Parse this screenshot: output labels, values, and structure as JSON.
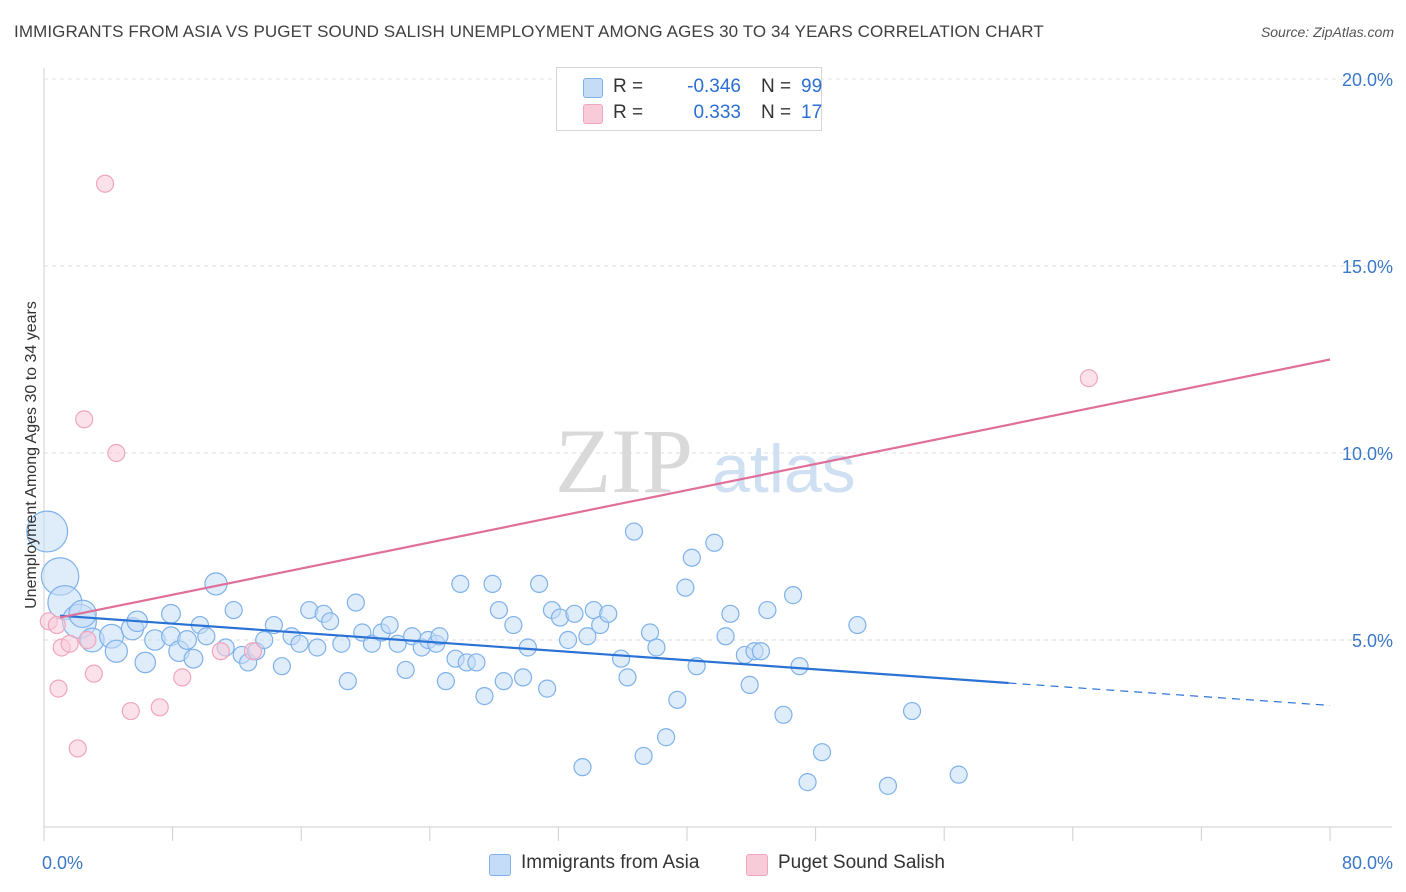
{
  "chart_data": {
    "type": "scatter",
    "title": "IMMIGRANTS FROM ASIA VS PUGET SOUND SALISH UNEMPLOYMENT AMONG AGES 30 TO 34 YEARS CORRELATION CHART",
    "source": "Source: ZipAtlas.com",
    "xlabel": "",
    "ylabel": "Unemployment Among Ages 30 to 34 years",
    "xlim": [
      0,
      80
    ],
    "ylim": [
      0,
      20
    ],
    "x_tick_labels": [
      "0.0%",
      "80.0%"
    ],
    "y_ticks": [
      5,
      10,
      15,
      20
    ],
    "y_tick_labels": [
      "5.0%",
      "10.0%",
      "15.0%",
      "20.0%"
    ],
    "watermark": "ZIPatlas",
    "legend": {
      "rows": [
        {
          "r_label": "R =",
          "r_value": "-0.346",
          "n_label": "N =",
          "n_value": "99"
        },
        {
          "r_label": "R =",
          "r_value": "0.333",
          "n_label": "N =",
          "n_value": "17"
        }
      ]
    },
    "series": [
      {
        "name": "Immigrants from Asia",
        "color": "#7fb2ea",
        "fill": "#c5dcf6",
        "line_color": "#2a72d4",
        "trend": {
          "x_start": 1.0,
          "y_start": 5.65,
          "x_end": 60.0,
          "y_end": 3.85,
          "dash_to_x": 80.0,
          "dash_to_y": 3.25
        },
        "points": [
          [
            0.2,
            7.9,
            2.4
          ],
          [
            1.0,
            6.7,
            2.2
          ],
          [
            1.3,
            6.0,
            2.0
          ],
          [
            2.2,
            5.5,
            2.0
          ],
          [
            2.4,
            5.7,
            1.6
          ],
          [
            3.0,
            5.0,
            1.4
          ],
          [
            4.2,
            5.1,
            1.4
          ],
          [
            4.5,
            4.7,
            1.3
          ],
          [
            5.5,
            5.3,
            1.3
          ],
          [
            5.8,
            5.5,
            1.2
          ],
          [
            6.3,
            4.4,
            1.2
          ],
          [
            6.9,
            5.0,
            1.2
          ],
          [
            7.9,
            5.1,
            1.1
          ],
          [
            7.9,
            5.7,
            1.1
          ],
          [
            8.4,
            4.7,
            1.2
          ],
          [
            8.9,
            5.0,
            1.1
          ],
          [
            9.3,
            4.5,
            1.1
          ],
          [
            9.7,
            5.4,
            1.0
          ],
          [
            10.1,
            5.1,
            1.0
          ],
          [
            10.7,
            6.5,
            1.3
          ],
          [
            11.3,
            4.8,
            1.0
          ],
          [
            11.8,
            5.8,
            1.0
          ],
          [
            12.3,
            4.6,
            1.0
          ],
          [
            12.7,
            4.4,
            1.0
          ],
          [
            13.2,
            4.7,
            1.0
          ],
          [
            13.7,
            5.0,
            1.0
          ],
          [
            14.3,
            5.4,
            1.0
          ],
          [
            14.8,
            4.3,
            1.0
          ],
          [
            15.4,
            5.1,
            1.0
          ],
          [
            15.9,
            4.9,
            1.0
          ],
          [
            16.5,
            5.8,
            1.0
          ],
          [
            17.0,
            4.8,
            1.0
          ],
          [
            17.4,
            5.7,
            1.0
          ],
          [
            17.8,
            5.5,
            1.0
          ],
          [
            18.5,
            4.9,
            1.0
          ],
          [
            18.9,
            3.9,
            1.0
          ],
          [
            19.4,
            6.0,
            1.0
          ],
          [
            19.8,
            5.2,
            1.0
          ],
          [
            20.4,
            4.9,
            1.0
          ],
          [
            21.0,
            5.2,
            1.0
          ],
          [
            21.5,
            5.4,
            1.0
          ],
          [
            22.0,
            4.9,
            1.0
          ],
          [
            22.5,
            4.2,
            1.0
          ],
          [
            22.9,
            5.1,
            1.0
          ],
          [
            23.5,
            4.8,
            1.0
          ],
          [
            23.9,
            5.0,
            1.0
          ],
          [
            24.4,
            4.9,
            1.0
          ],
          [
            24.6,
            5.1,
            1.0
          ],
          [
            25.0,
            3.9,
            1.0
          ],
          [
            25.6,
            4.5,
            1.0
          ],
          [
            25.9,
            6.5,
            1.0
          ],
          [
            26.3,
            4.4,
            1.0
          ],
          [
            26.9,
            4.4,
            1.0
          ],
          [
            27.4,
            3.5,
            1.0
          ],
          [
            27.9,
            6.5,
            1.0
          ],
          [
            28.3,
            5.8,
            1.0
          ],
          [
            28.6,
            3.9,
            1.0
          ],
          [
            29.2,
            5.4,
            1.0
          ],
          [
            29.8,
            4.0,
            1.0
          ],
          [
            30.1,
            4.8,
            1.0
          ],
          [
            30.8,
            6.5,
            1.0
          ],
          [
            31.3,
            3.7,
            1.0
          ],
          [
            31.6,
            5.8,
            1.0
          ],
          [
            32.1,
            5.6,
            1.0
          ],
          [
            32.6,
            5.0,
            1.0
          ],
          [
            33.0,
            5.7,
            1.0
          ],
          [
            33.5,
            1.6,
            1.0
          ],
          [
            33.8,
            5.1,
            1.0
          ],
          [
            34.2,
            5.8,
            1.0
          ],
          [
            34.6,
            5.4,
            1.0
          ],
          [
            35.1,
            5.7,
            1.0
          ],
          [
            35.9,
            4.5,
            1.0
          ],
          [
            36.3,
            4.0,
            1.0
          ],
          [
            36.7,
            7.9,
            1.0
          ],
          [
            37.3,
            1.9,
            1.0
          ],
          [
            37.7,
            5.2,
            1.0
          ],
          [
            38.1,
            4.8,
            1.0
          ],
          [
            38.7,
            2.4,
            1.0
          ],
          [
            39.4,
            3.4,
            1.0
          ],
          [
            39.9,
            6.4,
            1.0
          ],
          [
            40.3,
            7.2,
            1.0
          ],
          [
            40.6,
            4.3,
            1.0
          ],
          [
            41.7,
            7.6,
            1.0
          ],
          [
            42.4,
            5.1,
            1.0
          ],
          [
            42.7,
            5.7,
            1.0
          ],
          [
            43.6,
            4.6,
            1.0
          ],
          [
            43.9,
            3.8,
            1.0
          ],
          [
            44.2,
            4.7,
            1.0
          ],
          [
            44.6,
            4.7,
            1.0
          ],
          [
            45.0,
            5.8,
            1.0
          ],
          [
            46.0,
            3.0,
            1.0
          ],
          [
            46.6,
            6.2,
            1.0
          ],
          [
            47.0,
            4.3,
            1.0
          ],
          [
            47.5,
            1.2,
            1.0
          ],
          [
            48.4,
            2.0,
            1.0
          ],
          [
            50.6,
            5.4,
            1.0
          ],
          [
            52.5,
            1.1,
            1.0
          ],
          [
            54.0,
            3.1,
            1.0
          ],
          [
            56.9,
            1.4,
            1.0
          ]
        ]
      },
      {
        "name": "Puget Sound Salish",
        "color": "#f0a6bd",
        "fill": "#f8cbd9",
        "line_color": "#e0709a",
        "trend": {
          "x_start": 1.0,
          "y_start": 5.6,
          "x_end": 80.0,
          "y_end": 12.5
        },
        "points": [
          [
            0.3,
            5.5,
            1.0
          ],
          [
            0.8,
            5.4,
            1.0
          ],
          [
            0.9,
            3.7,
            1.0
          ],
          [
            1.1,
            4.8,
            1.0
          ],
          [
            1.6,
            4.9,
            1.0
          ],
          [
            2.1,
            2.1,
            1.0
          ],
          [
            2.5,
            10.9,
            1.0
          ],
          [
            2.7,
            5.0,
            1.0
          ],
          [
            3.1,
            4.1,
            1.0
          ],
          [
            3.8,
            17.2,
            1.0
          ],
          [
            4.5,
            10.0,
            1.0
          ],
          [
            5.4,
            3.1,
            1.0
          ],
          [
            7.2,
            3.2,
            1.0
          ],
          [
            8.6,
            4.0,
            1.0
          ],
          [
            11.0,
            4.7,
            1.0
          ],
          [
            13.0,
            4.7,
            1.0
          ],
          [
            65.0,
            12.0,
            1.0
          ]
        ]
      }
    ]
  }
}
